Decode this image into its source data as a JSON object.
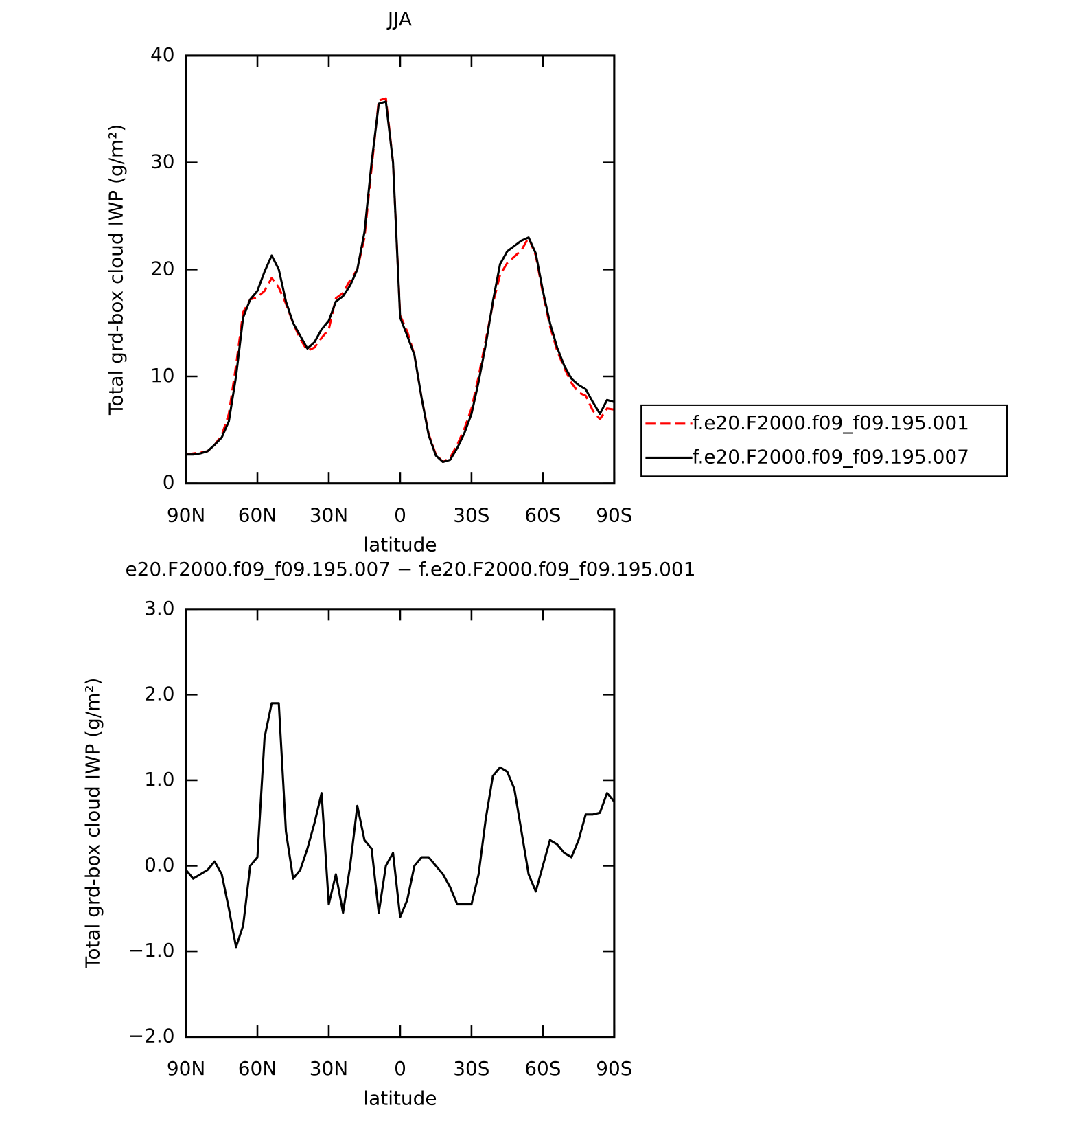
{
  "chart_data": [
    {
      "type": "line",
      "title": "JJA",
      "xlabel": "latitude",
      "ylabel": "Total grd-box cloud IWP (g/m²)",
      "x": [
        90,
        87,
        84,
        81,
        78,
        75,
        72,
        69,
        66,
        63,
        60,
        57,
        54,
        51,
        48,
        45,
        42,
        39,
        36,
        33,
        30,
        27,
        24,
        21,
        18,
        15,
        12,
        9,
        6,
        3,
        0,
        -3,
        -6,
        -9,
        -12,
        -15,
        -18,
        -21,
        -24,
        -27,
        -30,
        -33,
        -36,
        -39,
        -42,
        -45,
        -48,
        -51,
        -54,
        -57,
        -60,
        -63,
        -66,
        -69,
        -72,
        -75,
        -78,
        -81,
        -84,
        -87,
        -90
      ],
      "series": [
        {
          "name": "f.e20.F2000.f09_f09.195.001",
          "color": "#ff0000",
          "linestyle": "dashed",
          "values": [
            2.7,
            2.8,
            2.9,
            3.0,
            3.6,
            4.5,
            6.5,
            11,
            16,
            17.2,
            17.4,
            18,
            19.2,
            18.3,
            16.8,
            15,
            13.5,
            12.4,
            12.7,
            13.6,
            14.4,
            17.3,
            17.8,
            19,
            20,
            23,
            29.5,
            35.8,
            36,
            30,
            15.7,
            14.2,
            12,
            8,
            4.6,
            2.7,
            2.0,
            2.4,
            3.6,
            5.1,
            7,
            10,
            13.4,
            16.8,
            19.5,
            20.6,
            21.2,
            21.8,
            23,
            21.3,
            17.8,
            14.7,
            12.4,
            10.8,
            9.4,
            8.5,
            8.2,
            6.8,
            6.0,
            7.0,
            6.9
          ]
        },
        {
          "name": "f.e20.F2000.f09_f09.195.007",
          "color": "#000000",
          "linestyle": "solid",
          "values": [
            2.7,
            2.7,
            2.8,
            3.0,
            3.6,
            4.3,
            5.8,
            10,
            15.5,
            17.2,
            18,
            19.8,
            21.3,
            20,
            17,
            15,
            13.8,
            12.6,
            13.2,
            14.4,
            15.2,
            17,
            17.5,
            18.5,
            20,
            23.5,
            30,
            35.5,
            35.7,
            30,
            15.5,
            13.8,
            12,
            8,
            4.5,
            2.6,
            2.0,
            2.2,
            3.3,
            4.7,
            6.5,
            9.5,
            13,
            17,
            20.5,
            21.7,
            22.2,
            22.7,
            23,
            21.5,
            18,
            15,
            12.7,
            11,
            9.8,
            9.2,
            8.8,
            7.6,
            6.5,
            7.8,
            7.6
          ]
        }
      ],
      "xlim": [
        90,
        -90
      ],
      "xticks": [
        {
          "value": 90,
          "label": "90N"
        },
        {
          "value": 60,
          "label": "60N"
        },
        {
          "value": 30,
          "label": "30N"
        },
        0,
        {
          "value": -30,
          "label": "30S"
        },
        {
          "value": -60,
          "label": "60S"
        },
        {
          "value": -90,
          "label": "90S"
        }
      ],
      "ylim": [
        0,
        40
      ],
      "yticks": [
        0,
        10,
        20,
        30,
        40
      ],
      "legend": "outside-right"
    },
    {
      "type": "line",
      "title": "e20.F2000.f09_f09.195.007 − f.e20.F2000.f09_f09.195.001",
      "xlabel": "latitude",
      "ylabel": "Total grd-box cloud IWP (g/m²)",
      "x": [
        90,
        87,
        84,
        81,
        78,
        75,
        72,
        69,
        66,
        63,
        60,
        57,
        54,
        51,
        48,
        45,
        42,
        39,
        36,
        33,
        30,
        27,
        24,
        21,
        18,
        15,
        12,
        9,
        6,
        3,
        0,
        -3,
        -6,
        -9,
        -12,
        -15,
        -18,
        -21,
        -24,
        -27,
        -30,
        -33,
        -36,
        -39,
        -42,
        -45,
        -48,
        -51,
        -54,
        -57,
        -60,
        -63,
        -66,
        -69,
        -72,
        -75,
        -78,
        -81,
        -84,
        -87,
        -90
      ],
      "series": [
        {
          "color": "#000000",
          "linestyle": "solid",
          "values": [
            -0.05,
            -0.15,
            -0.1,
            -0.05,
            0.05,
            -0.1,
            -0.5,
            -0.95,
            -0.7,
            0.0,
            0.1,
            1.5,
            1.9,
            1.9,
            0.4,
            -0.15,
            -0.05,
            0.2,
            0.5,
            0.85,
            -0.45,
            -0.1,
            -0.55,
            0.0,
            0.7,
            0.3,
            0.2,
            -0.55,
            0.0,
            0.15,
            -0.6,
            -0.4,
            0.0,
            0.1,
            0.1,
            0.0,
            -0.1,
            -0.25,
            -0.45,
            -0.45,
            -0.45,
            -0.1,
            0.55,
            1.05,
            1.15,
            1.1,
            0.9,
            0.4,
            -0.1,
            -0.3,
            0.0,
            0.3,
            0.25,
            0.15,
            0.1,
            0.3,
            0.6,
            0.6,
            0.62,
            0.85,
            0.75
          ]
        }
      ],
      "xlim": [
        90,
        -90
      ],
      "xticks": [
        {
          "value": 90,
          "label": "90N"
        },
        {
          "value": 60,
          "label": "60N"
        },
        {
          "value": 30,
          "label": "30N"
        },
        0,
        {
          "value": -30,
          "label": "30S"
        },
        {
          "value": -60,
          "label": "60S"
        },
        {
          "value": -90,
          "label": "90S"
        }
      ],
      "ylim": [
        -2,
        3
      ],
      "yticks": [
        {
          "value": -2,
          "label": "−2.0"
        },
        {
          "value": -1,
          "label": "−1.0"
        },
        {
          "value": 0,
          "label": "0.0"
        },
        {
          "value": 1,
          "label": "1.0"
        },
        {
          "value": 2,
          "label": "2.0"
        },
        {
          "value": 3,
          "label": "3.0"
        }
      ]
    }
  ]
}
